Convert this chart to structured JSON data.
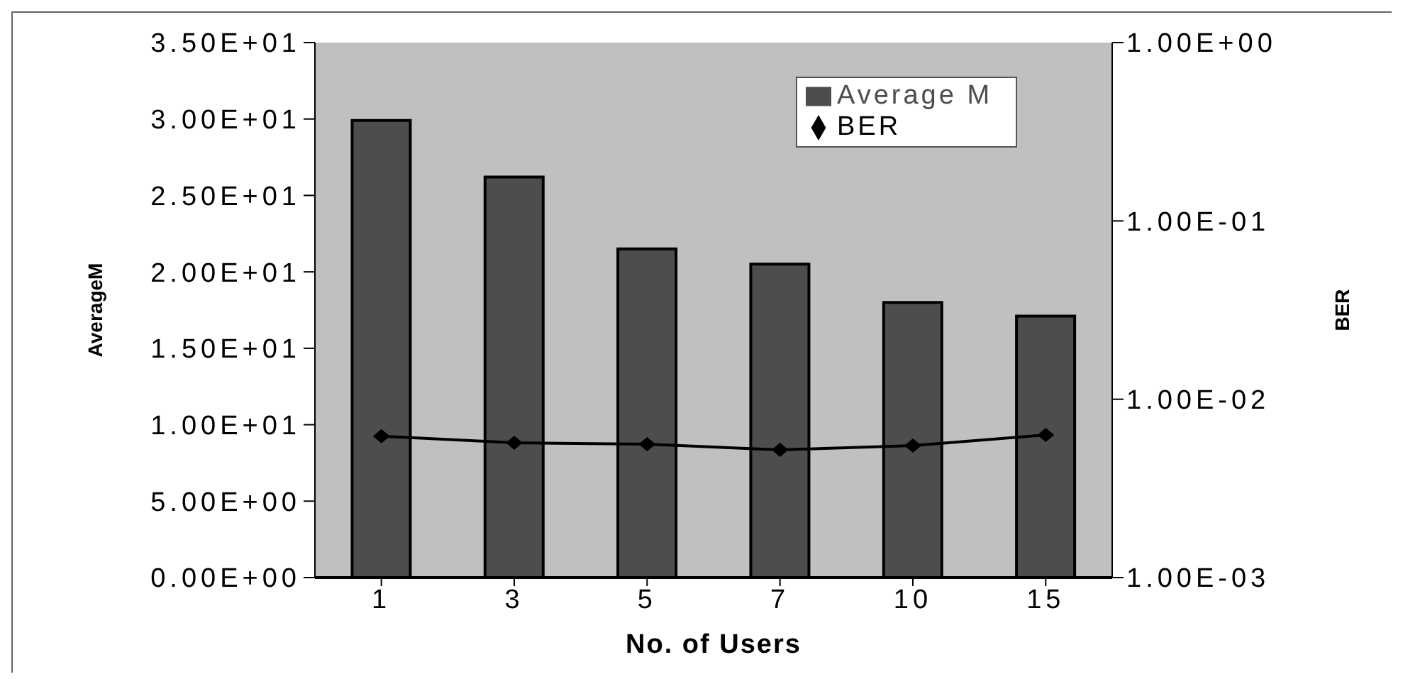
{
  "chart_data": {
    "type": "bar",
    "categories": [
      "1",
      "3",
      "5",
      "7",
      "10",
      "15"
    ],
    "series": [
      {
        "name": "Average M",
        "color": "#4d4d4d",
        "values": [
          29.9,
          26.2,
          21.5,
          20.5,
          18.0,
          17.1
        ]
      },
      {
        "name": "BER",
        "type": "line",
        "axis": "y2",
        "color": "#000000",
        "marker": "diamond",
        "values": [
          0.0062,
          0.0057,
          0.0056,
          0.0052,
          0.0055,
          0.0063
        ]
      }
    ],
    "xlabel": "No. of Users",
    "ylabel": "AverageM",
    "y2label": "BER",
    "ylim": [
      0,
      35
    ],
    "yticks": [
      {
        "value": 0,
        "label": "0.00E+00"
      },
      {
        "value": 5,
        "label": "5.00E+00"
      },
      {
        "value": 10,
        "label": "1.00E+01"
      },
      {
        "value": 15,
        "label": "1.50E+01"
      },
      {
        "value": 20,
        "label": "2.00E+01"
      },
      {
        "value": 25,
        "label": "2.50E+01"
      },
      {
        "value": 30,
        "label": "3.00E+01"
      },
      {
        "value": 35,
        "label": "3.50E+01"
      }
    ],
    "y2lim": [
      0.001,
      1
    ],
    "y2ticks": [
      {
        "value": 0.001,
        "label": "1.00E-03"
      },
      {
        "value": 0.01,
        "label": "1.00E-02"
      },
      {
        "value": 0.1,
        "label": "1.00E-01"
      },
      {
        "value": 1,
        "label": "1.00E+00"
      }
    ],
    "log": "y2",
    "legend": "top right"
  }
}
